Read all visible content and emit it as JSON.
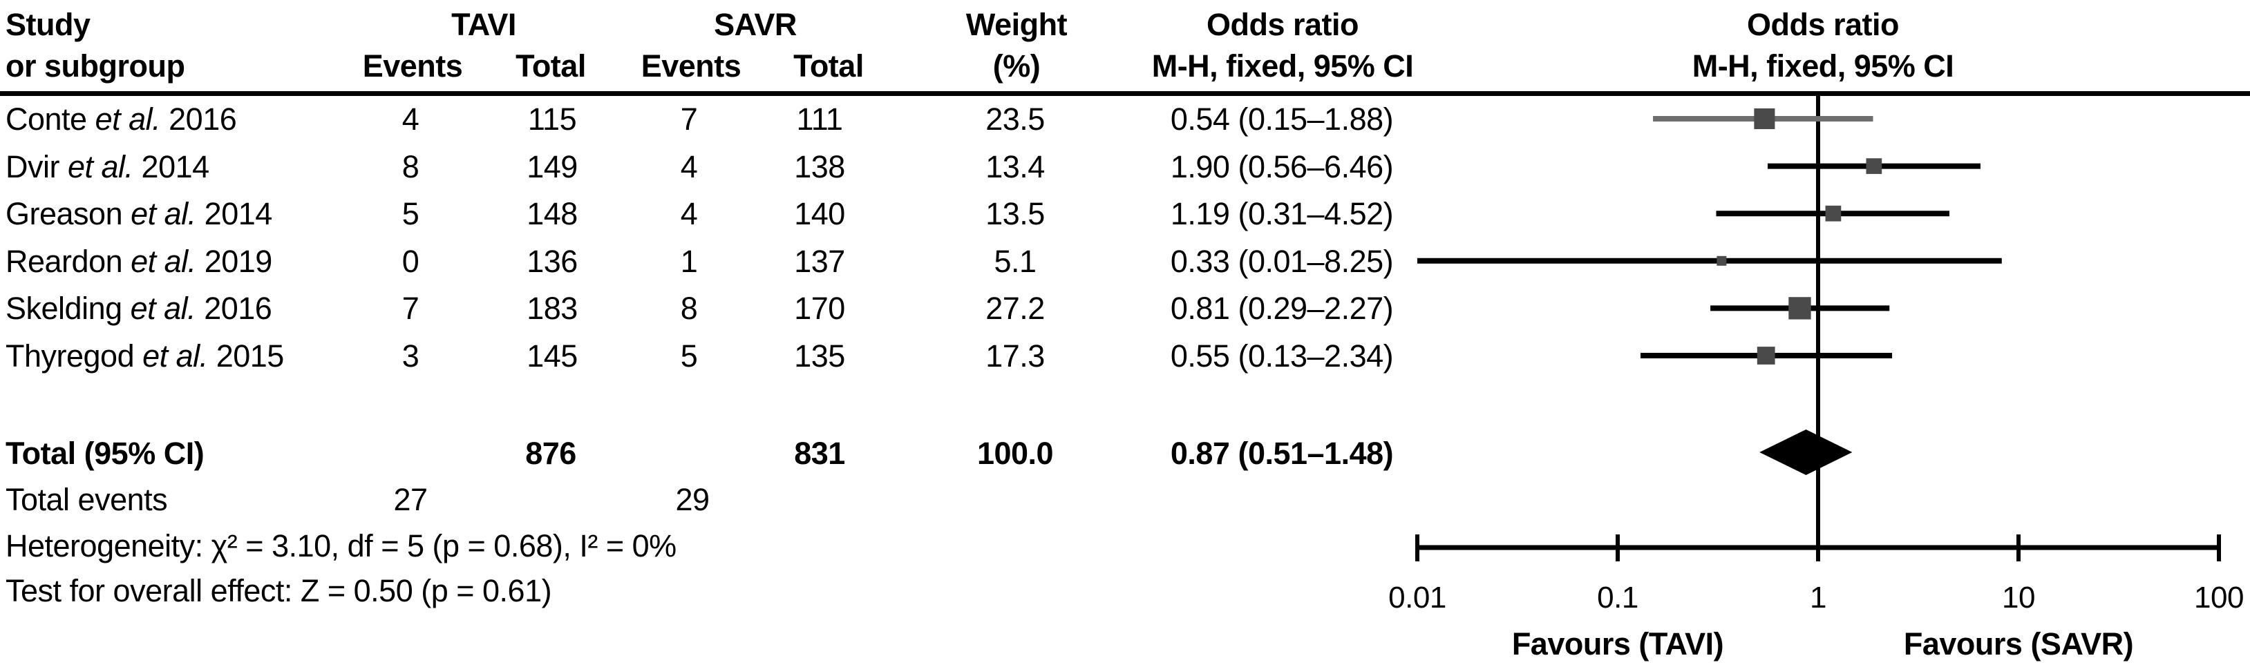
{
  "header": {
    "study_l1": "Study",
    "study_l2": "or subgroup",
    "tavi": "TAVI",
    "savr": "SAVR",
    "events": "Events",
    "total": "Total",
    "weight_l1": "Weight",
    "weight_l2": "(%)",
    "or_l1": "Odds ratio",
    "or_l2": "M-H, fixed, 95% CI"
  },
  "chart_data": {
    "type": "forest-plot",
    "effect_measure": "Odds ratio, M-H, fixed, 95% CI",
    "studies": [
      {
        "label_pre": "Conte ",
        "label_etal": "et al.",
        "label_post": " 2016",
        "tavi_events": "4",
        "tavi_total": "115",
        "savr_events": "7",
        "savr_total": "111",
        "weight_pct": "23.5",
        "or": 0.54,
        "ci_low": 0.15,
        "ci_high": 1.88,
        "or_text": "0.54 (0.15–1.88)",
        "line_color": "#6e6e6e"
      },
      {
        "label_pre": "Dvir ",
        "label_etal": "et al.",
        "label_post": " 2014",
        "tavi_events": "8",
        "tavi_total": "149",
        "savr_events": "4",
        "savr_total": "138",
        "weight_pct": "13.4",
        "or": 1.9,
        "ci_low": 0.56,
        "ci_high": 6.46,
        "or_text": "1.90 (0.56–6.46)",
        "line_color": "#000000"
      },
      {
        "label_pre": "Greason ",
        "label_etal": "et al.",
        "label_post": " 2014",
        "tavi_events": "5",
        "tavi_total": "148",
        "savr_events": "4",
        "savr_total": "140",
        "weight_pct": "13.5",
        "or": 1.19,
        "ci_low": 0.31,
        "ci_high": 4.52,
        "or_text": "1.19 (0.31–4.52)",
        "line_color": "#000000"
      },
      {
        "label_pre": "Reardon ",
        "label_etal": "et al.",
        "label_post": " 2019",
        "tavi_events": "0",
        "tavi_total": "136",
        "savr_events": "1",
        "savr_total": "137",
        "weight_pct": "5.1",
        "or": 0.33,
        "ci_low": 0.01,
        "ci_high": 8.25,
        "or_text": "0.33 (0.01–8.25)",
        "line_color": "#000000"
      },
      {
        "label_pre": "Skelding ",
        "label_etal": "et al.",
        "label_post": " 2016",
        "tavi_events": "7",
        "tavi_total": "183",
        "savr_events": "8",
        "savr_total": "170",
        "weight_pct": "27.2",
        "or": 0.81,
        "ci_low": 0.29,
        "ci_high": 2.27,
        "or_text": "0.81 (0.29–2.27)",
        "line_color": "#000000"
      },
      {
        "label_pre": "Thyregod ",
        "label_etal": "et al.",
        "label_post": " 2015",
        "tavi_events": "3",
        "tavi_total": "145",
        "savr_events": "5",
        "savr_total": "135",
        "weight_pct": "17.3",
        "or": 0.55,
        "ci_low": 0.13,
        "ci_high": 2.34,
        "or_text": "0.55 (0.13–2.34)",
        "line_color": "#000000"
      }
    ],
    "total": {
      "label": "Total (95% CI)",
      "tavi_total": "876",
      "savr_total": "831",
      "weight_pct": "100.0",
      "or": 0.87,
      "ci_low": 0.51,
      "ci_high": 1.48,
      "or_text": "0.87 (0.51–1.48)"
    },
    "total_events": {
      "label": "Total events",
      "tavi": "27",
      "savr": "29"
    },
    "heterogeneity": "Heterogeneity: χ² = 3.10, df = 5 (p = 0.68), I² = 0%",
    "overall_effect": "Test for overall effect: Z = 0.50 (p = 0.61)",
    "axis": {
      "scale": "log",
      "min": 0.01,
      "max": 100,
      "ticks": [
        "0.01",
        "0.1",
        "1",
        "10",
        "100"
      ],
      "favours_left": "Favours (TAVI)",
      "favours_right": "Favours (SAVR)"
    },
    "colors": {
      "square": "#4a4a4a",
      "diamond": "#000000",
      "line": "#000000"
    }
  }
}
